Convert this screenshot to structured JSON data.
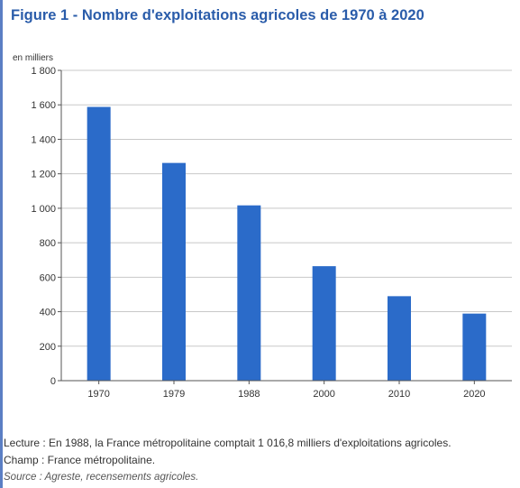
{
  "figure": {
    "title": "Figure 1 - Nombre d'exploitations agricoles de 1970 à 2020",
    "accent_color": "#2a5caa"
  },
  "chart_data": {
    "type": "bar",
    "unit_label": "en milliers",
    "categories": [
      "1970",
      "1979",
      "1988",
      "2000",
      "2010",
      "2020"
    ],
    "values": [
      1588,
      1263,
      1016.8,
      664,
      490,
      389
    ],
    "y_ticks": [
      0,
      200,
      400,
      600,
      800,
      1000,
      1200,
      1400,
      1600,
      1800
    ],
    "y_tick_labels": [
      "0",
      "200",
      "400",
      "600",
      "800",
      "1 000",
      "1 200",
      "1 400",
      "1 600",
      "1 800"
    ],
    "ylim": [
      0,
      1800
    ],
    "grid": true,
    "bar_color": "#2b6bc9",
    "xlabel": "",
    "ylabel": ""
  },
  "notes": {
    "lecture": "Lecture : En 1988, la France métropolitaine comptait 1 016,8 milliers d'exploitations agricoles.",
    "champ": "Champ : France métropolitaine.",
    "source": "Source : Agreste, recensements agricoles."
  }
}
